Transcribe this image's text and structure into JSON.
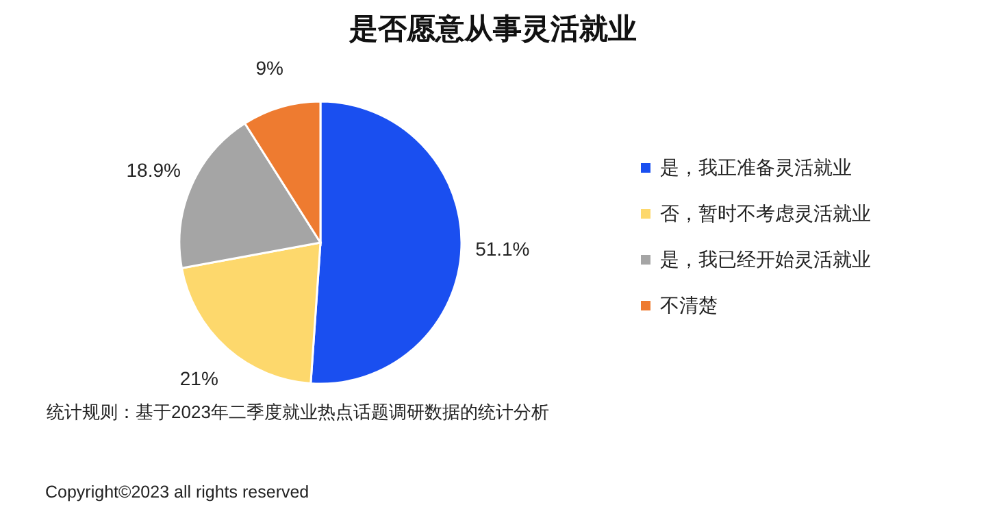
{
  "chart_data": {
    "type": "pie",
    "title": "是否愿意从事灵活就业",
    "categories": [
      "是，我正准备灵活就业",
      "否，暂时不考虑灵活就业",
      "是，我已经开始灵活就业",
      "不清楚"
    ],
    "values": [
      51.1,
      21,
      18.9,
      9
    ],
    "colors": [
      "#1a4ff0",
      "#fdd86c",
      "#a5a5a5",
      "#ee7b30"
    ],
    "value_labels": [
      "51.1%",
      "21%",
      "18.9%",
      "9%"
    ],
    "legend": "right",
    "annotations": [
      "统计规则：基于2023年二季度就业热点话题调研数据的统计分析",
      "Copyright©2023 all rights reserved"
    ]
  }
}
